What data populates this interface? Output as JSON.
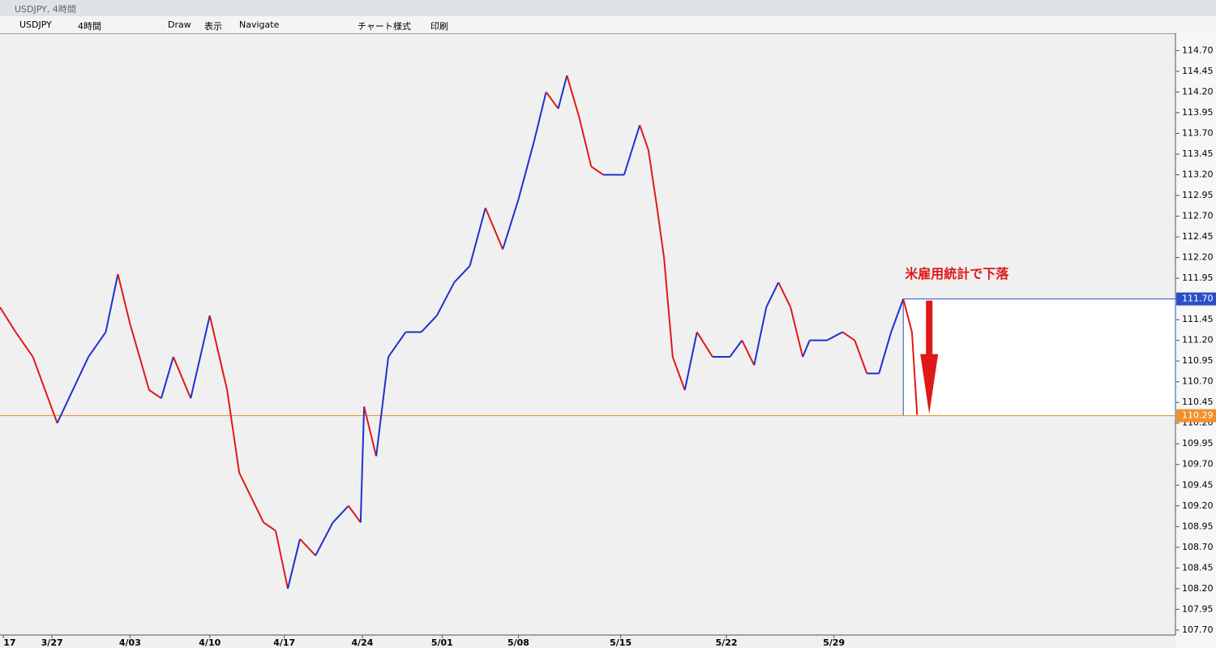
{
  "window": {
    "title": "USDJPY, 4時間"
  },
  "toolbar": {
    "symbol": "USDJPY",
    "timeframe": "4時間",
    "draw": "Draw",
    "view": "表示",
    "navigate": "Navigate",
    "style": "チャート様式",
    "print": "印刷"
  },
  "chart_data": {
    "type": "line",
    "annotation": "米雇用統計で下落",
    "x": [
      0,
      0.9,
      1.9,
      3.3,
      4.2,
      5.1,
      6.1,
      6.8,
      7.5,
      8.6,
      9.3,
      10.0,
      11.0,
      12.1,
      13.1,
      13.8,
      14.5,
      15.2,
      15.9,
      16.6,
      17.3,
      18.2,
      19.2,
      20.1,
      20.8,
      21.0,
      21.7,
      22.4,
      23.4,
      24.3,
      25.2,
      26.2,
      27.1,
      28.0,
      29.0,
      29.9,
      30.8,
      31.5,
      32.2,
      32.7,
      33.4,
      34.1,
      34.8,
      36.0,
      36.9,
      37.4,
      37.9,
      38.3,
      38.8,
      39.5,
      40.2,
      41.1,
      42.1,
      42.8,
      43.5,
      44.2,
      44.9,
      45.6,
      46.3,
      46.7,
      47.7,
      48.6,
      49.3,
      50.0,
      50.7,
      51.4,
      52.1,
      52.6,
      52.9
    ],
    "values": [
      111.6,
      111.3,
      111.0,
      110.2,
      110.6,
      111.0,
      111.3,
      112.0,
      111.4,
      110.6,
      110.5,
      111.0,
      110.5,
      111.5,
      110.6,
      109.6,
      109.3,
      109.0,
      108.9,
      108.2,
      108.8,
      108.6,
      109.0,
      109.2,
      109.0,
      110.4,
      109.8,
      111.0,
      111.3,
      111.3,
      111.5,
      111.9,
      112.1,
      112.8,
      112.3,
      112.9,
      113.6,
      114.2,
      114.0,
      114.4,
      113.9,
      113.3,
      113.2,
      113.2,
      113.8,
      113.5,
      112.8,
      112.2,
      111.0,
      110.6,
      111.3,
      111.0,
      111.0,
      111.2,
      110.9,
      111.6,
      111.9,
      111.6,
      111.0,
      111.2,
      111.2,
      111.3,
      111.2,
      110.8,
      110.8,
      111.3,
      111.7,
      111.3,
      110.3
    ],
    "up_color": "#1f2fd0",
    "down_color": "#e01818",
    "xlim": [
      0,
      67.8
    ],
    "xticks": [
      {
        "value": 0.2,
        "label": "17"
      },
      {
        "value": 3.0,
        "label": "3/27"
      },
      {
        "value": 7.5,
        "label": "4/03"
      },
      {
        "value": 12.1,
        "label": "4/10"
      },
      {
        "value": 16.4,
        "label": "4/17"
      },
      {
        "value": 20.9,
        "label": "4/24"
      },
      {
        "value": 25.5,
        "label": "5/01"
      },
      {
        "value": 29.9,
        "label": "5/08"
      },
      {
        "value": 35.8,
        "label": "5/15"
      },
      {
        "value": 41.9,
        "label": "5/22"
      },
      {
        "value": 48.1,
        "label": "5/29"
      }
    ],
    "ylim": [
      107.64,
      114.9
    ],
    "yticks": [
      {
        "value": 114.7,
        "label": "114.70"
      },
      {
        "value": 114.45,
        "label": "114.45"
      },
      {
        "value": 114.2,
        "label": "114.20"
      },
      {
        "value": 113.95,
        "label": "113.95"
      },
      {
        "value": 113.7,
        "label": "113.70"
      },
      {
        "value": 113.45,
        "label": "113.45"
      },
      {
        "value": 113.2,
        "label": "113.20"
      },
      {
        "value": 112.95,
        "label": "112.95"
      },
      {
        "value": 112.7,
        "label": "112.70"
      },
      {
        "value": 112.45,
        "label": "112.45"
      },
      {
        "value": 112.2,
        "label": "112.20"
      },
      {
        "value": 111.95,
        "label": "111.95"
      },
      {
        "value": 111.7,
        "label": "111.70"
      },
      {
        "value": 111.45,
        "label": "111.45"
      },
      {
        "value": 111.2,
        "label": "111.20"
      },
      {
        "value": 110.95,
        "label": "110.95"
      },
      {
        "value": 110.7,
        "label": "110.70"
      },
      {
        "value": 110.45,
        "label": "110.45"
      },
      {
        "value": 110.2,
        "label": "110.20"
      },
      {
        "value": 109.95,
        "label": "109.95"
      },
      {
        "value": 109.7,
        "label": "109.70"
      },
      {
        "value": 109.45,
        "label": "109.45"
      },
      {
        "value": 109.2,
        "label": "109.20"
      },
      {
        "value": 108.95,
        "label": "108.95"
      },
      {
        "value": 108.7,
        "label": "108.70"
      },
      {
        "value": 108.45,
        "label": "108.45"
      },
      {
        "value": 108.2,
        "label": "108.20"
      },
      {
        "value": 107.95,
        "label": "107.95"
      },
      {
        "value": 107.7,
        "label": "107.70"
      }
    ],
    "high_marker": {
      "value": 111.7,
      "label": "111.70",
      "color": "#2a50c8"
    },
    "price_marker": {
      "value": 110.29,
      "label": "110.29",
      "color": "#f0902a"
    },
    "box_start": 52.1
  }
}
